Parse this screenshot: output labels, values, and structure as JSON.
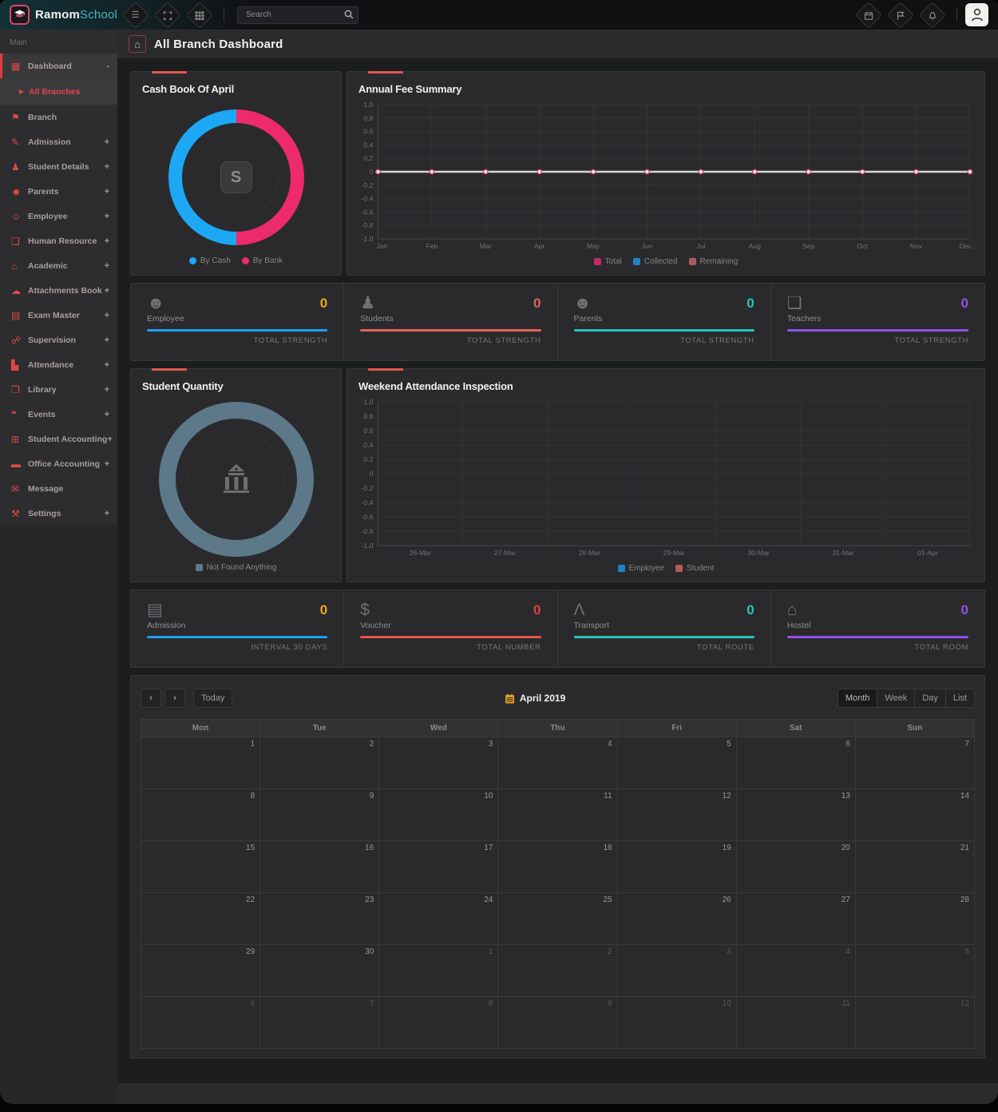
{
  "topbar": {
    "brand": {
      "name_primary": "Ramom",
      "name_secondary": "School"
    },
    "left_icons": [
      {
        "name": "menu"
      },
      {
        "name": "fullscreen"
      },
      {
        "name": "apps-grid"
      }
    ],
    "search": {
      "placeholder": "Search"
    },
    "right_icons": [
      {
        "name": "calendar"
      },
      {
        "name": "flag"
      },
      {
        "name": "notifications"
      }
    ]
  },
  "sidebar": {
    "section_label": "Main",
    "items": [
      {
        "label": "Dashboard",
        "icon": "dashboard",
        "suffix": "-",
        "active": true,
        "children": [
          {
            "label": "All Branches",
            "active": true
          }
        ]
      },
      {
        "label": "Branch",
        "icon": "branch",
        "suffix": ""
      },
      {
        "label": "Admission",
        "icon": "admission",
        "suffix": "+"
      },
      {
        "label": "Student Details",
        "icon": "student-details",
        "suffix": "+"
      },
      {
        "label": "Parents",
        "icon": "parents",
        "suffix": "+"
      },
      {
        "label": "Employee",
        "icon": "employee",
        "suffix": "+"
      },
      {
        "label": "Human Resource",
        "icon": "human-resource",
        "suffix": "+"
      },
      {
        "label": "Academic",
        "icon": "academic",
        "suffix": "+"
      },
      {
        "label": "Attachments Book",
        "icon": "attachments-book",
        "suffix": "+"
      },
      {
        "label": "Exam Master",
        "icon": "exam-master",
        "suffix": "+"
      },
      {
        "label": "Supervision",
        "icon": "supervision",
        "suffix": "+"
      },
      {
        "label": "Attendance",
        "icon": "attendance",
        "suffix": "+"
      },
      {
        "label": "Library",
        "icon": "library",
        "suffix": "+"
      },
      {
        "label": "Events",
        "icon": "events",
        "suffix": "+"
      },
      {
        "label": "Student Accounting",
        "icon": "student-accounting",
        "suffix": "+"
      },
      {
        "label": "Office Accounting",
        "icon": "office-accounting",
        "suffix": "+"
      },
      {
        "label": "Message",
        "icon": "message",
        "suffix": ""
      },
      {
        "label": "Settings",
        "icon": "settings",
        "suffix": "+"
      }
    ]
  },
  "page": {
    "title": "All Branch Dashboard"
  },
  "chart_data": [
    {
      "id": "cash_book",
      "type": "pie",
      "donut": true,
      "title": "Cash Book Of April",
      "slices": [
        {
          "label": "By Cash",
          "value": 50,
          "color": "#1da8f5"
        },
        {
          "label": "By Bank",
          "value": 50,
          "color": "#ed2a6c"
        }
      ],
      "legend_position": "bottom"
    },
    {
      "id": "annual_fee",
      "type": "line",
      "title": "Annual Fee Summary",
      "x": [
        "Jan",
        "Feb",
        "Mar",
        "Apr",
        "May",
        "Jun",
        "Jul",
        "Aug",
        "Sep",
        "Oct",
        "Nov",
        "Dec"
      ],
      "ylim": [
        -1.0,
        1.0
      ],
      "ytick_labels": [
        "1.0",
        "0.8",
        "0.6",
        "0.4",
        "0.2",
        "0",
        "-0.2",
        "-0.4",
        "-0.6",
        "-0.8",
        "-1.0"
      ],
      "grid": true,
      "series": [
        {
          "name": "Total",
          "color": "#c12960",
          "values": [
            0,
            0,
            0,
            0,
            0,
            0,
            0,
            0,
            0,
            0,
            0,
            0
          ]
        },
        {
          "name": "Collected",
          "color": "#1f83c4",
          "values": [
            0,
            0,
            0,
            0,
            0,
            0,
            0,
            0,
            0,
            0,
            0,
            0
          ]
        },
        {
          "name": "Remaining",
          "color": "#aa5b5b",
          "values": [
            0,
            0,
            0,
            0,
            0,
            0,
            0,
            0,
            0,
            0,
            0,
            0
          ]
        }
      ],
      "line_color": "#d6d6d6",
      "marker_ring": "#dd4b7c",
      "marker_fill": "#f4f4f4",
      "legend_position": "bottom"
    },
    {
      "id": "student_quantity",
      "type": "pie",
      "donut": true,
      "title": "Student Quantity",
      "slices": [
        {
          "label": "Not Found Anything",
          "value": 100,
          "color": "#5d7889"
        }
      ],
      "legend_position": "bottom"
    },
    {
      "id": "weekend_attendance",
      "type": "line",
      "title": "Weekend Attendance Inspection",
      "x": [
        "26-Mar",
        "27-Mar",
        "28-Mar",
        "29-Mar",
        "30-Mar",
        "31-Mar",
        "01-Apr"
      ],
      "ylim": [
        -1.0,
        1.0
      ],
      "ytick_labels": [
        "1.0",
        "0.8",
        "0.6",
        "0.4",
        "0.2",
        "0",
        "-0.2",
        "-0.4",
        "-0.6",
        "-0.8",
        "-1.0"
      ],
      "grid": true,
      "series": [
        {
          "name": "Employee",
          "color": "#1f83c4",
          "values": []
        },
        {
          "name": "Student",
          "color": "#b75a5a",
          "values": []
        }
      ],
      "legend_position": "bottom"
    }
  ],
  "stats_row1": [
    {
      "label": "Employee",
      "icon": "employees",
      "value": "0",
      "footer": "TOTAL STRENGTH",
      "value_color": "#f0a81c",
      "bar_color": "#1c9ff0"
    },
    {
      "label": "Students",
      "icon": "students",
      "value": "0",
      "footer": "TOTAL STRENGTH",
      "value_color": "#e4635c",
      "bar_color": "#e4635c"
    },
    {
      "label": "Parents",
      "icon": "parents-stat",
      "value": "0",
      "footer": "TOTAL STRENGTH",
      "value_color": "#29c5b9",
      "bar_color": "#29c5b9"
    },
    {
      "label": "Teachers",
      "icon": "teachers",
      "value": "0",
      "footer": "TOTAL STRENGTH",
      "value_color": "#9253e8",
      "bar_color": "#9253e8"
    }
  ],
  "stats_row2": [
    {
      "label": "Admission",
      "icon": "admission-card",
      "value": "0",
      "footer": "INTERVAL 30 DAYS",
      "value_color": "#f0a81c",
      "bar_color": "#1c9ff0"
    },
    {
      "label": "Voucher",
      "icon": "voucher",
      "value": "0",
      "footer": "TOTAL NUMBER",
      "value_color": "#e4433c",
      "bar_color": "#e4544c"
    },
    {
      "label": "Transport",
      "icon": "transport",
      "value": "0",
      "footer": "TOTAL ROUTE",
      "value_color": "#29c5b9",
      "bar_color": "#29c5b9"
    },
    {
      "label": "Hostel",
      "icon": "hostel",
      "value": "0",
      "footer": "TOTAL ROOM",
      "value_color": "#9253e8",
      "bar_color": "#9253e8"
    }
  ],
  "calendar": {
    "toolbar": {
      "today": "Today",
      "title": "April 2019",
      "views": [
        "Month",
        "Week",
        "Day",
        "List"
      ],
      "active_view": "Month"
    },
    "day_headers": [
      "Mon",
      "Tue",
      "Wed",
      "Thu",
      "Fri",
      "Sat",
      "Sun"
    ],
    "weeks": [
      [
        {
          "d": "1"
        },
        {
          "d": "2"
        },
        {
          "d": "3"
        },
        {
          "d": "4"
        },
        {
          "d": "5"
        },
        {
          "d": "6"
        },
        {
          "d": "7"
        }
      ],
      [
        {
          "d": "8"
        },
        {
          "d": "9"
        },
        {
          "d": "10"
        },
        {
          "d": "11"
        },
        {
          "d": "12"
        },
        {
          "d": "13"
        },
        {
          "d": "14"
        }
      ],
      [
        {
          "d": "15"
        },
        {
          "d": "16"
        },
        {
          "d": "17"
        },
        {
          "d": "18"
        },
        {
          "d": "19"
        },
        {
          "d": "20"
        },
        {
          "d": "21"
        }
      ],
      [
        {
          "d": "22"
        },
        {
          "d": "23"
        },
        {
          "d": "24"
        },
        {
          "d": "25"
        },
        {
          "d": "26"
        },
        {
          "d": "27"
        },
        {
          "d": "28"
        }
      ],
      [
        {
          "d": "29"
        },
        {
          "d": "30"
        },
        {
          "d": "1",
          "muted": true
        },
        {
          "d": "2",
          "muted": true
        },
        {
          "d": "3",
          "muted": true
        },
        {
          "d": "4",
          "muted": true
        },
        {
          "d": "5",
          "muted": true
        }
      ],
      [
        {
          "d": "6",
          "muted": true
        },
        {
          "d": "7",
          "muted": true
        },
        {
          "d": "8",
          "muted": true
        },
        {
          "d": "9",
          "muted": true
        },
        {
          "d": "10",
          "muted": true
        },
        {
          "d": "11",
          "muted": true
        },
        {
          "d": "12",
          "muted": true
        }
      ]
    ]
  }
}
